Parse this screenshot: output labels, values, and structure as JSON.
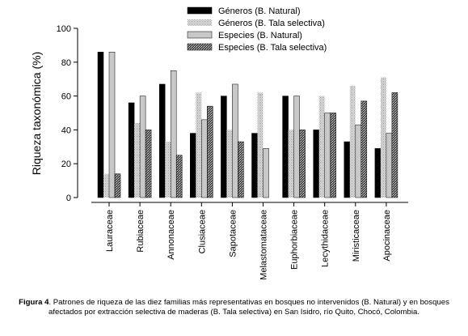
{
  "chart_data": {
    "type": "bar",
    "ylabel": "Riqueza taxonómica (%)",
    "xlabel": "",
    "ylim": [
      0,
      100
    ],
    "yticks": [
      0,
      20,
      40,
      60,
      80,
      100
    ],
    "grid": false,
    "legend_position": "top",
    "categories": [
      "Lauraceae",
      "Rubiaceae",
      "Annonaceae",
      "Clusiaceae",
      "Sapotaceae",
      "Melastomataceae",
      "Euphorbiaceae",
      "Lecythidaceae",
      "Miristicaceae",
      "Apocinaceae"
    ],
    "series": [
      {
        "name": "Géneros (B. Natural)",
        "pattern": "black",
        "values": [
          86,
          56,
          67,
          38,
          60,
          38,
          60,
          40,
          33,
          29
        ]
      },
      {
        "name": "Géneros (B. Tala selectiva)",
        "pattern": "dots",
        "values": [
          14,
          44,
          33,
          62,
          40,
          62,
          40,
          60,
          66,
          71
        ]
      },
      {
        "name": "Especies (B. Natural)",
        "pattern": "gray",
        "values": [
          86,
          60,
          75,
          46,
          67,
          29,
          60,
          50,
          43,
          38
        ]
      },
      {
        "name": "Especies (B. Tala selectiva)",
        "pattern": "crosshatch",
        "values": [
          14,
          40,
          25,
          54,
          33,
          0,
          40,
          50,
          57,
          62
        ]
      }
    ]
  },
  "caption": {
    "label": "Figura 4",
    "text": ". Patrones de riqueza de las diez familias más representativas en bosques no intervenidos (B. Natural) y en bosques afectados por extracción selectiva de maderas (B. Tala selectiva) en San Isidro, río Quito, Chocó, Colombia."
  }
}
